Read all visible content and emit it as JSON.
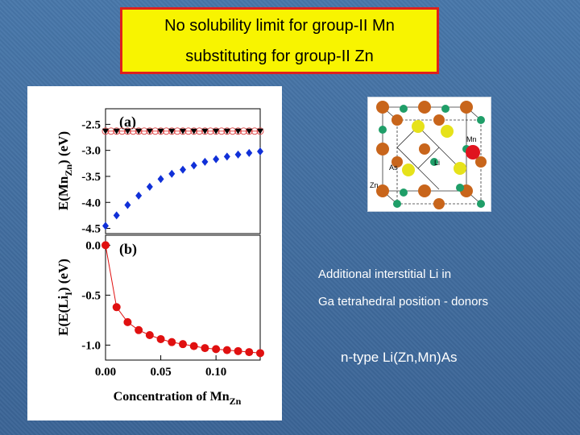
{
  "slide": {
    "title_line1": "No solubility limit for group-II Mn",
    "title_line2": "substituting for group-II Zn",
    "note_line1": "Additional interstitial Li in",
    "note_line2": "Ga tetrahedral position - donors",
    "note_line3": "n-type Li(Zn,Mn)As"
  },
  "crystal_labels": {
    "mn": "Mn",
    "as": "As",
    "li": "Li",
    "zn": "Zn"
  },
  "chart_data": [
    {
      "type": "scatter",
      "panel_label": "(a)",
      "ylabel": "E(Mn",
      "ylabel_sub": "Zn",
      "ylabel_tail": ") (eV)",
      "yticks": [
        "-2.5",
        "-3.0",
        "-3.5",
        "-4.0",
        "-4.5"
      ],
      "ytick_values": [
        -2.5,
        -3.0,
        -3.5,
        -4.0,
        -4.5
      ],
      "ylim": [
        -4.6,
        -2.2
      ],
      "xlim": [
        0,
        0.14
      ],
      "series": [
        {
          "marker": "open-circle",
          "color": "#e05050",
          "x": [
            0.0,
            0.005,
            0.01,
            0.015,
            0.02,
            0.025,
            0.03,
            0.035,
            0.04,
            0.045,
            0.05,
            0.055,
            0.06,
            0.065,
            0.07,
            0.075,
            0.08,
            0.085,
            0.09,
            0.095,
            0.1,
            0.105,
            0.11,
            0.115,
            0.12,
            0.125,
            0.13,
            0.135,
            0.14
          ],
          "y": [
            -2.63,
            -2.63,
            -2.63,
            -2.63,
            -2.63,
            -2.63,
            -2.63,
            -2.63,
            -2.63,
            -2.63,
            -2.63,
            -2.63,
            -2.63,
            -2.63,
            -2.63,
            -2.63,
            -2.63,
            -2.63,
            -2.63,
            -2.63,
            -2.63,
            -2.63,
            -2.63,
            -2.63,
            -2.63,
            -2.63,
            -2.63,
            -2.63,
            -2.63
          ]
        },
        {
          "marker": "down-triangle",
          "color": "#000000",
          "x": [
            0.0,
            0.01,
            0.02,
            0.03,
            0.04,
            0.05,
            0.06,
            0.07,
            0.08,
            0.09,
            0.1,
            0.11,
            0.12,
            0.13,
            0.14
          ],
          "y": [
            -2.63,
            -2.63,
            -2.63,
            -2.63,
            -2.63,
            -2.63,
            -2.63,
            -2.63,
            -2.63,
            -2.63,
            -2.63,
            -2.63,
            -2.63,
            -2.63,
            -2.63
          ]
        },
        {
          "marker": "diamond",
          "color": "#1030d8",
          "x": [
            0.0,
            0.01,
            0.02,
            0.03,
            0.04,
            0.05,
            0.06,
            0.07,
            0.08,
            0.09,
            0.1,
            0.11,
            0.12,
            0.13,
            0.14
          ],
          "y": [
            -4.45,
            -4.25,
            -4.05,
            -3.87,
            -3.7,
            -3.55,
            -3.45,
            -3.37,
            -3.29,
            -3.22,
            -3.17,
            -3.12,
            -3.08,
            -3.05,
            -3.02
          ]
        }
      ]
    },
    {
      "type": "line",
      "panel_label": "(b)",
      "ylabel": "E(E(Li",
      "ylabel_sub": "I",
      "ylabel_tail": ") (eV)",
      "xlabel": "Concentration of Mn",
      "xlabel_sub": "Zn",
      "yticks": [
        "0.0",
        "-0.5",
        "-1.0"
      ],
      "ytick_values": [
        0.0,
        -0.5,
        -1.0
      ],
      "xticks": [
        "0.00",
        "0.05",
        "0.10"
      ],
      "xtick_values": [
        0.0,
        0.05,
        0.1
      ],
      "ylim": [
        -1.15,
        0.1
      ],
      "xlim": [
        0,
        0.14
      ],
      "series": [
        {
          "marker": "filled-circle",
          "color": "#e01010",
          "x": [
            0.0,
            0.01,
            0.02,
            0.03,
            0.04,
            0.05,
            0.06,
            0.07,
            0.08,
            0.09,
            0.1,
            0.11,
            0.12,
            0.13,
            0.14
          ],
          "y": [
            0.0,
            -0.62,
            -0.77,
            -0.85,
            -0.9,
            -0.94,
            -0.97,
            -0.99,
            -1.01,
            -1.03,
            -1.04,
            -1.05,
            -1.06,
            -1.07,
            -1.08
          ]
        }
      ]
    }
  ]
}
